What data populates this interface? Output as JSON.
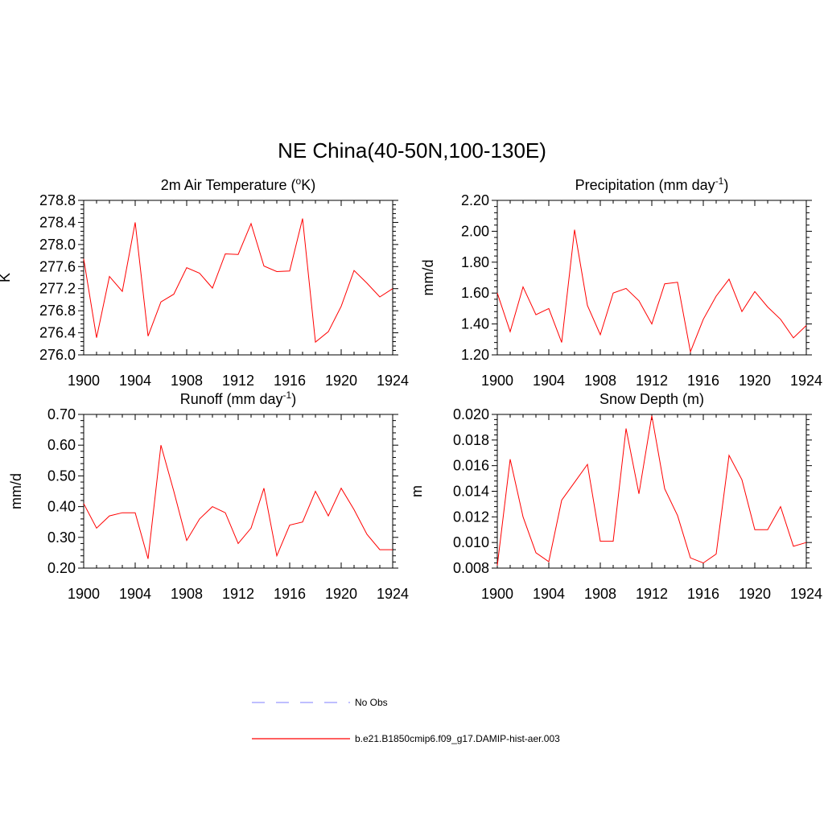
{
  "main_title": "NE China(40-50N,100-130E)",
  "legend": [
    {
      "label": "No Obs",
      "color": "#9999ff",
      "dash": "dashed"
    },
    {
      "label": "b.e21.B1850cmip6.f09_g17.DAMIP-hist-aer.003",
      "color": "#ff0000",
      "dash": "solid"
    }
  ],
  "chart_data": [
    {
      "type": "line",
      "title": "2m Air Temperature (",
      "title_sup": "o",
      "title_after": "K)",
      "ylabel": "K",
      "xlim": [
        1900,
        1924
      ],
      "ylim": [
        276.0,
        278.8
      ],
      "xticks": [
        1900,
        1904,
        1908,
        1912,
        1916,
        1920,
        1924
      ],
      "yticks": [
        "276.0",
        "276.4",
        "276.8",
        "277.2",
        "277.6",
        "278.0",
        "278.4",
        "278.8"
      ],
      "series": [
        {
          "color": "#ff0000",
          "x": [
            1900,
            1901,
            1902,
            1903,
            1904,
            1905,
            1906,
            1907,
            1908,
            1909,
            1910,
            1911,
            1912,
            1913,
            1914,
            1915,
            1916,
            1917,
            1918,
            1919,
            1920,
            1921,
            1922,
            1923,
            1924
          ],
          "values": [
            277.74,
            276.31,
            277.42,
            277.15,
            278.4,
            276.34,
            276.96,
            277.1,
            277.58,
            277.48,
            277.21,
            277.83,
            277.82,
            278.38,
            277.61,
            277.51,
            277.52,
            278.47,
            276.23,
            276.42,
            276.88,
            277.53,
            277.3,
            277.05,
            277.2
          ]
        }
      ]
    },
    {
      "type": "line",
      "title": "Precipitation (mm day",
      "title_sup": "-1",
      "title_after": ")",
      "ylabel": "mm/d",
      "xlim": [
        1900,
        1924
      ],
      "ylim": [
        1.2,
        2.2
      ],
      "xticks": [
        1900,
        1904,
        1908,
        1912,
        1916,
        1920,
        1924
      ],
      "yticks": [
        "1.20",
        "1.40",
        "1.60",
        "1.80",
        "2.00",
        "2.20"
      ],
      "series": [
        {
          "color": "#ff0000",
          "x": [
            1900,
            1901,
            1902,
            1903,
            1904,
            1905,
            1906,
            1907,
            1908,
            1909,
            1910,
            1911,
            1912,
            1913,
            1914,
            1915,
            1916,
            1917,
            1918,
            1919,
            1920,
            1921,
            1922,
            1923,
            1924
          ],
          "values": [
            1.6,
            1.35,
            1.64,
            1.46,
            1.5,
            1.28,
            2.01,
            1.52,
            1.33,
            1.6,
            1.63,
            1.55,
            1.4,
            1.66,
            1.67,
            1.22,
            1.43,
            1.58,
            1.69,
            1.48,
            1.61,
            1.51,
            1.43,
            1.31,
            1.39
          ]
        }
      ]
    },
    {
      "type": "line",
      "title": "Runoff (mm day",
      "title_sup": "-1",
      "title_after": ")",
      "ylabel": "mm/d",
      "xlim": [
        1900,
        1924
      ],
      "ylim": [
        0.2,
        0.7
      ],
      "xticks": [
        1900,
        1904,
        1908,
        1912,
        1916,
        1920,
        1924
      ],
      "yticks": [
        "0.20",
        "0.30",
        "0.40",
        "0.50",
        "0.60",
        "0.70"
      ],
      "series": [
        {
          "color": "#ff0000",
          "x": [
            1900,
            1901,
            1902,
            1903,
            1904,
            1905,
            1906,
            1907,
            1908,
            1909,
            1910,
            1911,
            1912,
            1913,
            1914,
            1915,
            1916,
            1917,
            1918,
            1919,
            1920,
            1921,
            1922,
            1923,
            1924
          ],
          "values": [
            0.41,
            0.33,
            0.37,
            0.38,
            0.38,
            0.23,
            0.6,
            0.45,
            0.29,
            0.36,
            0.4,
            0.38,
            0.28,
            0.33,
            0.46,
            0.24,
            0.34,
            0.35,
            0.45,
            0.37,
            0.46,
            0.39,
            0.31,
            0.26,
            0.26
          ]
        }
      ]
    },
    {
      "type": "line",
      "title": "Snow Depth (m)",
      "title_sup": "",
      "title_after": "",
      "ylabel": "m",
      "xlim": [
        1900,
        1924
      ],
      "ylim": [
        0.008,
        0.02
      ],
      "xticks": [
        1900,
        1904,
        1908,
        1912,
        1916,
        1920,
        1924
      ],
      "yticks": [
        "0.008",
        "0.010",
        "0.012",
        "0.014",
        "0.016",
        "0.018",
        "0.020"
      ],
      "series": [
        {
          "color": "#ff0000",
          "x": [
            1900,
            1901,
            1902,
            1903,
            1904,
            1905,
            1906,
            1907,
            1908,
            1909,
            1910,
            1911,
            1912,
            1913,
            1914,
            1915,
            1916,
            1917,
            1918,
            1919,
            1920,
            1921,
            1922,
            1923,
            1924
          ],
          "values": [
            0.0082,
            0.0165,
            0.012,
            0.0092,
            0.0085,
            0.0133,
            0.0147,
            0.0161,
            0.0101,
            0.0101,
            0.0189,
            0.0138,
            0.0199,
            0.0142,
            0.0121,
            0.0088,
            0.0084,
            0.0091,
            0.0168,
            0.0149,
            0.011,
            0.011,
            0.0128,
            0.0097,
            0.01
          ]
        }
      ]
    }
  ]
}
